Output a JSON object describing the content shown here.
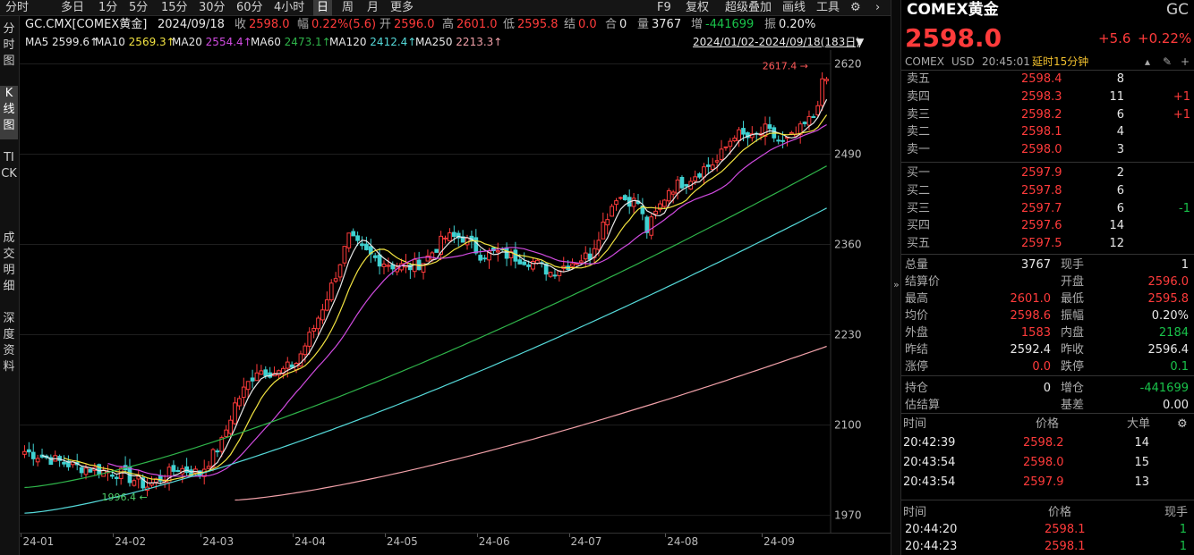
{
  "toolbar": {
    "periods": [
      "分时",
      "多日",
      "1分",
      "5分",
      "15分",
      "30分",
      "60分",
      "4小时",
      "日",
      "周",
      "月",
      "更多"
    ],
    "active_period": "日",
    "tools": [
      "F9",
      "复权",
      "超级叠加",
      "画线",
      "工具"
    ]
  },
  "left_tabs": [
    "分时图",
    "K线图",
    "TICK",
    "成交明细",
    "深度资料"
  ],
  "info": {
    "symbol": "GC.CMX[COMEX黄金]",
    "date": "2024/09/18",
    "close_label": "收",
    "close": "2598.0",
    "change_label": "幅",
    "change": "0.22%(5.6)",
    "open_label": "开",
    "open": "2596.0",
    "high_label": "高",
    "high": "2601.0",
    "low_label": "低",
    "low": "2595.8",
    "settle_label": "结",
    "settle": "0.0",
    "oi_label": "合",
    "oi": "0",
    "vol_label": "量",
    "vol": "3767",
    "inc_label": "增",
    "inc": "-441699",
    "amp_label": "振",
    "amp": "0.20%"
  },
  "ma": [
    {
      "name": "MA5",
      "value": "2599.6↑",
      "color": "#e8e8e8"
    },
    {
      "name": "MA10",
      "value": "2569.3↑",
      "color": "#f2e341"
    },
    {
      "name": "MA20",
      "value": "2554.4↑",
      "color": "#d04be0"
    },
    {
      "name": "MA60",
      "value": "2473.1↑",
      "color": "#2fb44a"
    },
    {
      "name": "MA120",
      "value": "2412.4↑",
      "color": "#55d9d9"
    },
    {
      "name": "MA250",
      "value": "2213.3↑",
      "color": "#f0a0a8"
    }
  ],
  "range_label": "2024/01/02-2024/09/18(183日)",
  "chart_data": {
    "type": "candlestick",
    "ylim": [
      1945,
      2640
    ],
    "y_ticks": [
      2620,
      2490,
      2360,
      2230,
      2100,
      1970
    ],
    "x_ticks": [
      "24-01",
      "24-02",
      "24-03",
      "24-04",
      "24-05",
      "24-06",
      "24-07",
      "24-08",
      "24-09"
    ],
    "high_label": "2617.4",
    "low_label": "1996.4",
    "anchors": [
      [
        0,
        2062
      ],
      [
        12,
        2040
      ],
      [
        22,
        2030
      ],
      [
        28,
        2012
      ],
      [
        35,
        2038
      ],
      [
        40,
        2030
      ],
      [
        45,
        2075
      ],
      [
        48,
        2130
      ],
      [
        53,
        2180
      ],
      [
        58,
        2175
      ],
      [
        62,
        2190
      ],
      [
        66,
        2240
      ],
      [
        70,
        2300
      ],
      [
        74,
        2370
      ],
      [
        77,
        2352
      ],
      [
        80,
        2340
      ],
      [
        84,
        2330
      ],
      [
        88,
        2328
      ],
      [
        91,
        2335
      ],
      [
        96,
        2370
      ],
      [
        100,
        2370
      ],
      [
        104,
        2346
      ],
      [
        108,
        2348
      ],
      [
        112,
        2342
      ],
      [
        116,
        2335
      ],
      [
        120,
        2320
      ],
      [
        125,
        2335
      ],
      [
        129,
        2345
      ],
      [
        132,
        2390
      ],
      [
        135,
        2430
      ],
      [
        140,
        2420
      ],
      [
        142,
        2380
      ],
      [
        147,
        2440
      ],
      [
        151,
        2452
      ],
      [
        155,
        2470
      ],
      [
        158,
        2480
      ],
      [
        162,
        2520
      ],
      [
        166,
        2512
      ],
      [
        169,
        2525
      ],
      [
        173,
        2505
      ],
      [
        176,
        2518
      ],
      [
        180,
        2545
      ],
      [
        182,
        2590
      ],
      [
        183,
        2598
      ]
    ],
    "ma_final": {
      "ma5": 2599.6,
      "ma10": 2569.3,
      "ma20": 2554.4,
      "ma60": 2473.1,
      "ma120": 2412.4,
      "ma250": 2213.3
    },
    "ma_start": {
      "ma60": 2010,
      "ma120": 1973,
      "ma250": 1992
    }
  },
  "quote": {
    "title": "COMEX黄金",
    "code": "GC",
    "price": "2598.0",
    "change": "+5.6",
    "change_pct": "+0.22%",
    "exchange": "COMEX",
    "currency": "USD",
    "time": "20:45:01",
    "delay": "延时15分钟"
  },
  "book": {
    "asks": [
      {
        "label": "卖五",
        "price": "2598.4",
        "vol": "8",
        "chg": ""
      },
      {
        "label": "卖四",
        "price": "2598.3",
        "vol": "11",
        "chg": "+1"
      },
      {
        "label": "卖三",
        "price": "2598.2",
        "vol": "6",
        "chg": "+1"
      },
      {
        "label": "卖二",
        "price": "2598.1",
        "vol": "4",
        "chg": ""
      },
      {
        "label": "卖一",
        "price": "2598.0",
        "vol": "3",
        "chg": ""
      }
    ],
    "bids": [
      {
        "label": "买一",
        "price": "2597.9",
        "vol": "2",
        "chg": ""
      },
      {
        "label": "买二",
        "price": "2597.8",
        "vol": "6",
        "chg": ""
      },
      {
        "label": "买三",
        "price": "2597.7",
        "vol": "6",
        "chg": "-1"
      },
      {
        "label": "买四",
        "price": "2597.6",
        "vol": "14",
        "chg": ""
      },
      {
        "label": "买五",
        "price": "2597.5",
        "vol": "12",
        "chg": ""
      }
    ]
  },
  "stats": [
    {
      "l1": "总量",
      "v1": "3767",
      "c1": "white",
      "l2": "现手",
      "v2": "1",
      "c2": "white"
    },
    {
      "l1": "结算价",
      "v1": "",
      "c1": "white",
      "l2": "开盘",
      "v2": "2596.0",
      "c2": "red"
    },
    {
      "l1": "最高",
      "v1": "2601.0",
      "c1": "red",
      "l2": "最低",
      "v2": "2595.8",
      "c2": "red"
    },
    {
      "l1": "均价",
      "v1": "2598.6",
      "c1": "red",
      "l2": "振幅",
      "v2": "0.20%",
      "c2": "white"
    },
    {
      "l1": "外盘",
      "v1": "1583",
      "c1": "red",
      "l2": "内盘",
      "v2": "2184",
      "c2": "green"
    },
    {
      "l1": "昨结",
      "v1": "2592.4",
      "c1": "white",
      "l2": "昨收",
      "v2": "2596.4",
      "c2": "white"
    },
    {
      "l1": "涨停",
      "v1": "0.0",
      "c1": "red",
      "l2": "跌停",
      "v2": "0.1",
      "c2": "green"
    },
    {
      "l1": "持仓",
      "v1": "0",
      "c1": "white",
      "l2": "增仓",
      "v2": "-441699",
      "c2": "green"
    },
    {
      "l1": "估结算",
      "v1": "",
      "c1": "white",
      "l2": "基差",
      "v2": "0.00",
      "c2": "white"
    }
  ],
  "big_trades": {
    "headers": [
      "时间",
      "价格",
      "大单"
    ],
    "rows": [
      [
        "20:42:39",
        "2598.2",
        "14"
      ],
      [
        "20:43:54",
        "2598.0",
        "15"
      ],
      [
        "20:43:54",
        "2597.9",
        "13"
      ]
    ]
  },
  "ticks": {
    "headers": [
      "时间",
      "价格",
      "现手"
    ],
    "rows": [
      [
        "20:44:20",
        "2598.1",
        "1"
      ],
      [
        "20:44:23",
        "2598.1",
        "1"
      ]
    ]
  },
  "colors": {
    "up": "#ff3b3b",
    "down": "#19c24a",
    "bg": "#000000"
  }
}
